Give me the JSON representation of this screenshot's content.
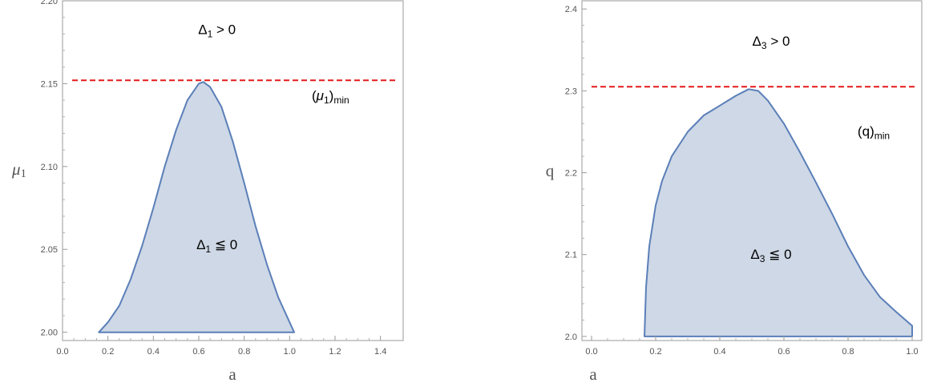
{
  "chart_data": [
    {
      "type": "area",
      "xlabel": "a",
      "ylabel_base": "μ",
      "ylabel_sub": "1",
      "xlim": [
        0,
        1.5
      ],
      "ylim": [
        1.995,
        2.2
      ],
      "xticks": [
        "0.0",
        "0.2",
        "0.4",
        "0.6",
        "0.8",
        "1.0",
        "1.2",
        "1.4"
      ],
      "yticks": [
        "2.00",
        "2.05",
        "2.10",
        "2.15",
        "2.20"
      ],
      "region_colors": {
        "fill": "#ced8e6",
        "stroke": "#5b7fb8",
        "threshold": "#e41a1c"
      },
      "boundary": {
        "x": [
          0.16,
          0.2,
          0.25,
          0.3,
          0.35,
          0.4,
          0.45,
          0.5,
          0.55,
          0.6,
          0.62,
          0.65,
          0.7,
          0.75,
          0.8,
          0.85,
          0.9,
          0.95,
          1.02
        ],
        "y": [
          2.0,
          2.006,
          2.016,
          2.032,
          2.052,
          2.075,
          2.1,
          2.122,
          2.14,
          2.15,
          2.151,
          2.148,
          2.136,
          2.115,
          2.09,
          2.064,
          2.041,
          2.021,
          2.0
        ]
      },
      "threshold": {
        "y": 2.152,
        "x_range": [
          0,
          1.5
        ]
      },
      "annotations": {
        "above": {
          "base": "Δ",
          "sub": "1",
          "rest": " > 0",
          "x": 0.68,
          "y": 2.18
        },
        "below": {
          "base": "Δ",
          "sub": "1",
          "rest": " ≦ 0",
          "x": 0.68,
          "y": 2.05
        },
        "min": {
          "open": "(",
          "base": "μ",
          "sub": "1",
          "close": ")",
          "sub2": "min",
          "x": 1.18,
          "y": 2.14
        }
      }
    },
    {
      "type": "area",
      "xlabel": "a",
      "ylabel_base": "q",
      "ylabel_sub": "",
      "xlim": [
        -0.03,
        1.03
      ],
      "ylim": [
        1.995,
        2.41
      ],
      "xticks": [
        "0.0",
        "0.2",
        "0.4",
        "0.6",
        "0.8",
        "1.0"
      ],
      "yticks": [
        "2.0",
        "2.1",
        "2.2",
        "2.3",
        "2.4"
      ],
      "region_colors": {
        "fill": "#ced8e6",
        "stroke": "#5b7fb8",
        "threshold": "#e41a1c"
      },
      "boundary": {
        "x": [
          0.165,
          0.17,
          0.18,
          0.2,
          0.22,
          0.25,
          0.3,
          0.35,
          0.4,
          0.45,
          0.49,
          0.52,
          0.55,
          0.6,
          0.65,
          0.7,
          0.75,
          0.8,
          0.85,
          0.9,
          0.95,
          1.0,
          1.0
        ],
        "y": [
          2.0,
          2.06,
          2.11,
          2.16,
          2.19,
          2.22,
          2.25,
          2.27,
          2.282,
          2.294,
          2.302,
          2.3,
          2.288,
          2.26,
          2.225,
          2.188,
          2.15,
          2.11,
          2.075,
          2.048,
          2.03,
          2.013,
          2.0
        ]
      },
      "threshold": {
        "y": 2.305,
        "x_range": [
          -0.03,
          1.03
        ]
      },
      "annotations": {
        "above": {
          "base": "Δ",
          "sub": "3",
          "rest": " > 0",
          "x": 0.56,
          "y": 2.355
        },
        "below": {
          "base": "Δ",
          "sub": "3",
          "rest": " ≦ 0",
          "x": 0.56,
          "y": 2.095
        },
        "min": {
          "open": "(",
          "base": "q",
          "sub": "",
          "close": ")",
          "sub2": "min",
          "x": 0.88,
          "y": 2.245
        }
      }
    }
  ]
}
